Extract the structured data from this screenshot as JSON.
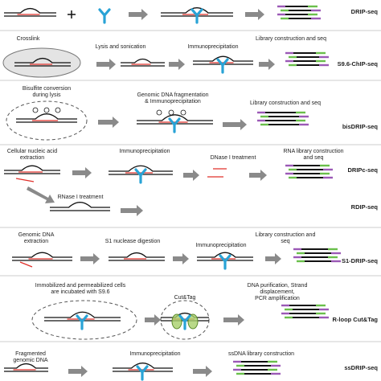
{
  "panels": [
    {
      "methods": [
        "DRIP-seq"
      ],
      "steps": []
    },
    {
      "methods": [
        "S9.6-ChIP-seq"
      ],
      "steps": [
        [
          "Crosslink"
        ],
        [
          "Lysis and sonication"
        ],
        [
          "Immunoprecipitation"
        ],
        [
          "Library construction and seq"
        ]
      ]
    },
    {
      "methods": [
        "bisDRIP-seq"
      ],
      "steps": [
        [
          "Bisulfite conversion",
          "during lysis"
        ],
        [
          "Genomic DNA fragmentation",
          "& Immunoprecipitation"
        ],
        [
          "Library construction and seq"
        ]
      ]
    },
    {
      "methods": [
        "DRIPc-seq",
        "RDIP-seq"
      ],
      "steps": [
        [
          "Cellular nucleic acid",
          "extraction"
        ],
        [
          "Immunoprecipitation"
        ],
        [
          "DNase I treatment"
        ],
        [
          "RNA library construction",
          "and seq"
        ],
        [
          "RNase I treatment"
        ]
      ]
    },
    {
      "methods": [
        "S1-DRIP-seq"
      ],
      "steps": [
        [
          "Genomic DNA",
          "extraction"
        ],
        [
          "S1 nuclease digestion"
        ],
        [
          "Immunoprecipitation"
        ],
        [
          "Library construction and",
          "seq"
        ]
      ]
    },
    {
      "methods": [
        "R-loop Cut&Tag"
      ],
      "steps": [
        [
          "Immobilized and permeabilized cells",
          "are incubated with S9.6"
        ],
        [
          "Cut&Tag"
        ],
        [
          "DNA purification, Strand",
          "displacement,",
          "PCR amplification"
        ]
      ]
    },
    {
      "methods": [
        "ssDRIP-seq"
      ],
      "steps": [
        [
          "Fragmented",
          "genomic DNA"
        ],
        [
          "Immunoprecipitation"
        ],
        [
          "ssDNA library construction"
        ]
      ]
    }
  ]
}
